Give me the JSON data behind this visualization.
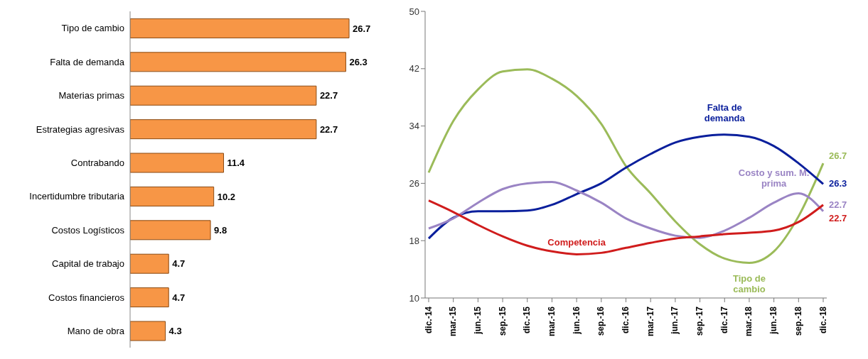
{
  "chart_data": [
    {
      "type": "bar",
      "orientation": "horizontal",
      "categories": [
        "Tipo de cambio",
        "Falta de demanda",
        "Materias primas",
        "Estrategias agresivas",
        "Contrabando",
        "Incertidumbre tributaria",
        "Costos Logísticos",
        "Capital de trabajo",
        "Costos financieros",
        "Mano de obra"
      ],
      "values": [
        26.7,
        26.3,
        22.7,
        22.7,
        11.4,
        10.2,
        9.8,
        4.7,
        4.7,
        4.3
      ],
      "color": "#f79646",
      "data_labels": true
    },
    {
      "type": "line",
      "categories": [
        "dic.-14",
        "mar.-15",
        "jun.-15",
        "sep.-15",
        "dic.-15",
        "mar.-16",
        "jun.-16",
        "sep.-16",
        "dic.-16",
        "mar.-17",
        "jun.-17",
        "sep.-17",
        "dic.-17",
        "mar.-18",
        "jun.-18",
        "sep.-18",
        "dic.-18"
      ],
      "ylim": [
        10,
        50
      ],
      "yticks": [
        10,
        18,
        26,
        34,
        42,
        50
      ],
      "grid": false,
      "legend": false,
      "marker": "none",
      "line_style": "solid",
      "series": [
        {
          "name": "Tipo de cambio",
          "color": "#9bbb59",
          "values": [
            27.5,
            34.7,
            39.1,
            41.6,
            41.9,
            40.6,
            38.2,
            34.3,
            28.4,
            24.6,
            20.7,
            17.5,
            15.5,
            14.9,
            16.5,
            21.4,
            28.8
          ]
        },
        {
          "name": "Falta de demanda",
          "color": "#0a1f9c",
          "values": [
            18.3,
            21.2,
            22.1,
            22.1,
            22.2,
            23.0,
            24.5,
            26.0,
            28.2,
            30.1,
            31.7,
            32.5,
            32.8,
            32.5,
            31.2,
            28.8,
            25.9
          ]
        },
        {
          "name": "Costo y sum. M. prima",
          "color": "#9a84c4",
          "values": [
            19.7,
            21.1,
            23.3,
            25.2,
            26.0,
            26.2,
            25.0,
            23.3,
            21.1,
            19.7,
            18.7,
            18.4,
            19.4,
            21.2,
            23.3,
            24.6,
            22.1
          ]
        },
        {
          "name": "Competencia",
          "color": "#d01c1c",
          "values": [
            23.6,
            22.0,
            20.2,
            18.6,
            17.3,
            16.5,
            16.1,
            16.3,
            17.0,
            17.7,
            18.3,
            18.6,
            18.9,
            19.1,
            19.4,
            20.6,
            23.0
          ]
        }
      ],
      "annotations": [
        {
          "text": "26.7",
          "x": "dic.-18",
          "y": 28.8
        },
        {
          "text": "26.3",
          "x": "dic.-18",
          "y": 25.9
        },
        {
          "text": "22.7",
          "x": "dic.-18",
          "y": 23.0
        },
        {
          "text": "22.7",
          "x": "dic.-18",
          "y": 22.1
        }
      ]
    }
  ]
}
